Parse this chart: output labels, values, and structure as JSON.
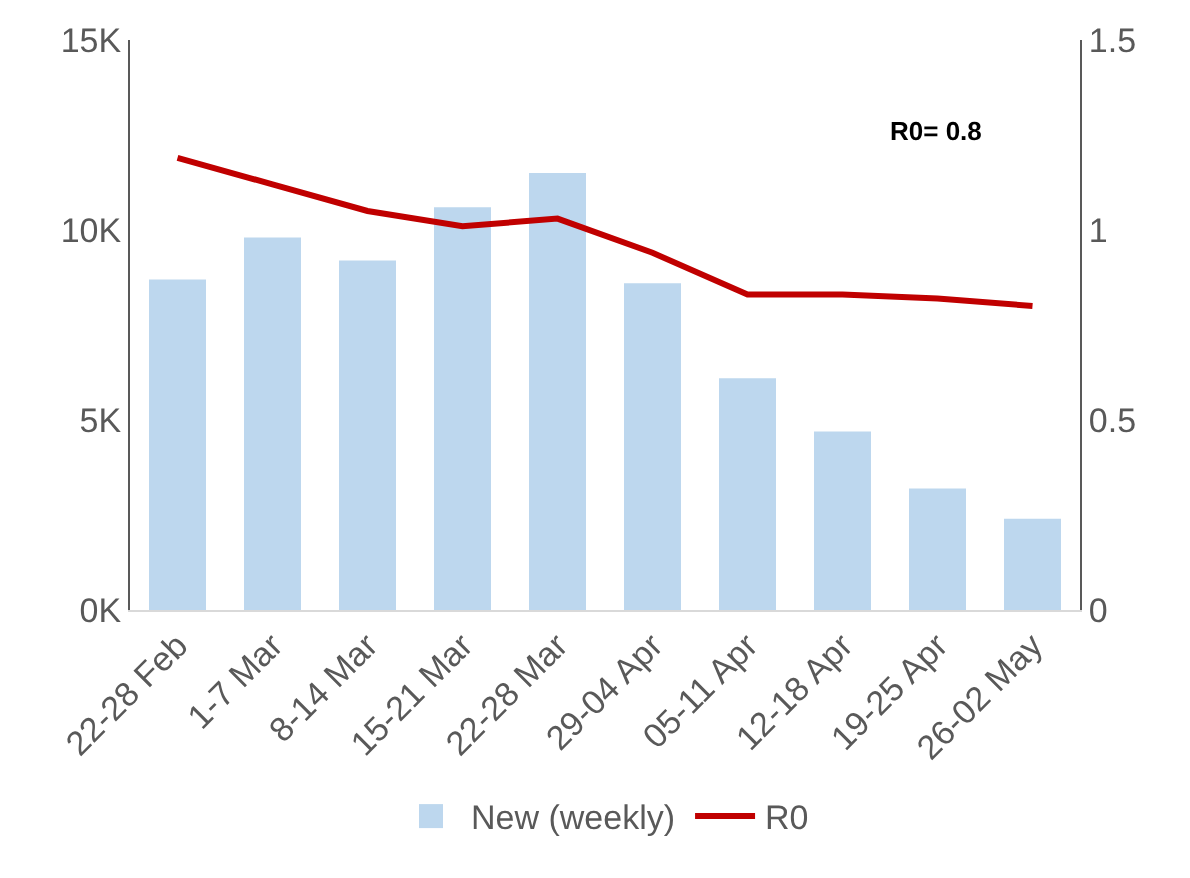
{
  "chart_data": {
    "type": "bar",
    "categories": [
      "22-28 Feb",
      "1-7 Mar",
      "8-14 Mar",
      "15-21 Mar",
      "22-28 Mar",
      "29-04 Apr",
      "05-11 Apr",
      "12-18 Apr",
      "19-25 Apr",
      "26-02 May"
    ],
    "series": [
      {
        "name": "New (weekly)",
        "color": "#bdd7ee",
        "values": [
          8700,
          9800,
          9200,
          10600,
          11500,
          8600,
          6100,
          4700,
          3200,
          2400
        ]
      },
      {
        "name": "R0",
        "type": "line",
        "axis": "y2",
        "color": "#c00000",
        "values": [
          1.19,
          1.12,
          1.05,
          1.01,
          1.03,
          0.94,
          0.83,
          0.83,
          0.82,
          0.8
        ]
      }
    ],
    "ylim": [
      0,
      15000
    ],
    "yticks": [
      {
        "value": 0,
        "label": "0K"
      },
      {
        "value": 5000,
        "label": "5K"
      },
      {
        "value": 10000,
        "label": "10K"
      },
      {
        "value": 15000,
        "label": "15K"
      }
    ],
    "y2lim": [
      0,
      1.5
    ],
    "y2ticks": [
      0,
      0.5,
      1,
      1.5
    ],
    "annotations": [
      "R0= 0.8"
    ],
    "grid": false,
    "legend": "bottom",
    "marker": "none",
    "line_style": "solid"
  }
}
